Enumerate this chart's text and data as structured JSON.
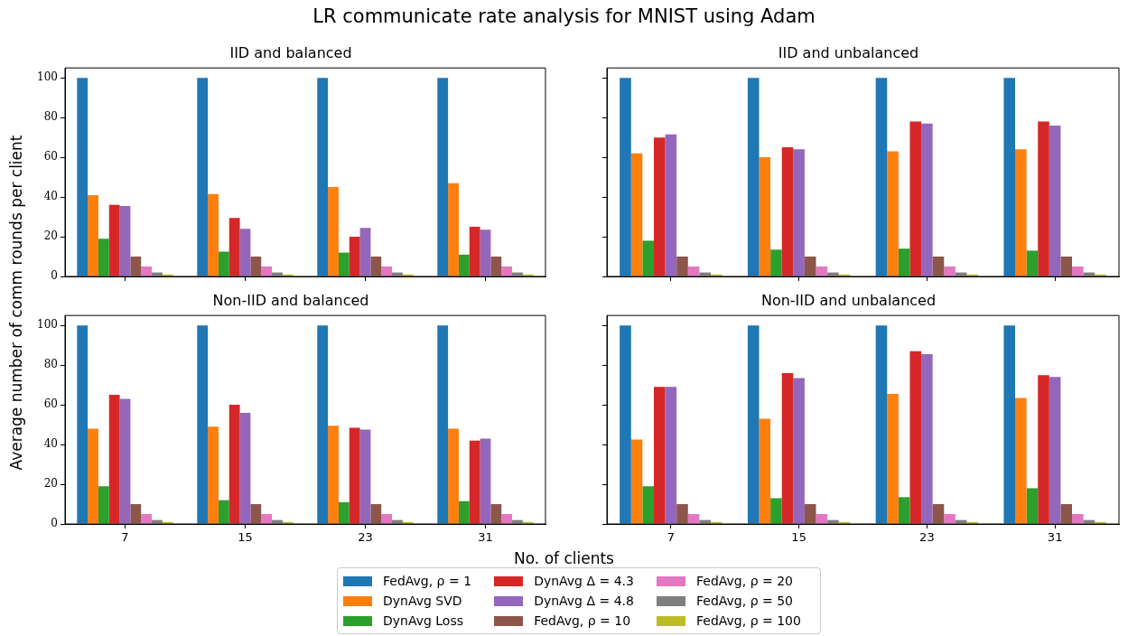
{
  "chart_data": [
    {
      "type": "bar",
      "title": "IID and balanced",
      "annotations": [
        "LR communicate rate analysis for MNIST using Adam"
      ],
      "ylabel": "Average number of comm rounds per client",
      "legend": "bottom",
      "categories": [
        "7",
        "15",
        "23",
        "31"
      ],
      "ylim": [
        0,
        105
      ],
      "yticks": [
        0,
        20,
        40,
        60,
        80,
        100
      ],
      "grid": false,
      "tick_labels": "y",
      "series": [
        {
          "name": "FedAvg, ρ = 1",
          "color": "#1f77b4",
          "values": [
            100,
            100,
            100,
            100
          ]
        },
        {
          "name": "DynAvg SVD",
          "color": "#ff7f0e",
          "values": [
            41,
            41.5,
            45,
            47
          ]
        },
        {
          "name": "DynAvg Loss",
          "color": "#2ca02c",
          "values": [
            19,
            12.5,
            12,
            11
          ]
        },
        {
          "name": "DynAvg Δ = 4.3",
          "color": "#d62728",
          "values": [
            36,
            29.5,
            20,
            25
          ]
        },
        {
          "name": "DynAvg Δ = 4.8",
          "color": "#9467bd",
          "values": [
            35.5,
            24,
            24.5,
            23.5
          ]
        },
        {
          "name": "FedAvg, ρ = 10",
          "color": "#8c564b",
          "values": [
            10,
            10,
            10,
            10
          ]
        },
        {
          "name": "FedAvg, ρ = 20",
          "color": "#e377c2",
          "values": [
            5,
            5,
            5,
            5
          ]
        },
        {
          "name": "FedAvg, ρ = 50",
          "color": "#7f7f7f",
          "values": [
            2,
            2,
            2,
            2
          ]
        },
        {
          "name": "FedAvg, ρ = 100",
          "color": "#bcbd22",
          "values": [
            1,
            1,
            1,
            1
          ]
        }
      ]
    },
    {
      "type": "bar",
      "title": "IID and unbalanced",
      "categories": [
        "7",
        "15",
        "23",
        "31"
      ],
      "ylim": [
        0,
        105
      ],
      "yticks": [
        0,
        20,
        40,
        60,
        80,
        100
      ],
      "grid": false,
      "tick_labels": false,
      "series": [
        {
          "color": "#1f77b4",
          "values": [
            100,
            100,
            100,
            100
          ]
        },
        {
          "color": "#ff7f0e",
          "values": [
            62,
            60,
            63,
            64
          ]
        },
        {
          "color": "#2ca02c",
          "values": [
            18,
            13.5,
            14,
            13
          ]
        },
        {
          "color": "#d62728",
          "values": [
            70,
            65,
            78,
            78
          ]
        },
        {
          "color": "#9467bd",
          "values": [
            71.5,
            64,
            77,
            76
          ]
        },
        {
          "color": "#8c564b",
          "values": [
            10,
            10,
            10,
            10
          ]
        },
        {
          "color": "#e377c2",
          "values": [
            5,
            5,
            5,
            5
          ]
        },
        {
          "color": "#7f7f7f",
          "values": [
            2,
            2,
            2,
            2
          ]
        },
        {
          "color": "#bcbd22",
          "values": [
            1,
            1,
            1,
            1
          ]
        }
      ]
    },
    {
      "type": "bar",
      "title": "Non-IID and balanced",
      "xlabel": "No. of clients",
      "categories": [
        "7",
        "15",
        "23",
        "31"
      ],
      "ylim": [
        0,
        105
      ],
      "yticks": [
        0,
        20,
        40,
        60,
        80,
        100
      ],
      "grid": false,
      "series": [
        {
          "color": "#1f77b4",
          "values": [
            100,
            100,
            100,
            100
          ]
        },
        {
          "color": "#ff7f0e",
          "values": [
            48,
            49,
            49.5,
            48
          ]
        },
        {
          "color": "#2ca02c",
          "values": [
            19,
            12,
            11,
            11.5
          ]
        },
        {
          "color": "#d62728",
          "values": [
            65,
            60,
            48.5,
            42
          ]
        },
        {
          "color": "#9467bd",
          "values": [
            63,
            56,
            47.5,
            43
          ]
        },
        {
          "color": "#8c564b",
          "values": [
            10,
            10,
            10,
            10
          ]
        },
        {
          "color": "#e377c2",
          "values": [
            5,
            5,
            5,
            5
          ]
        },
        {
          "color": "#7f7f7f",
          "values": [
            2,
            2,
            2,
            2
          ]
        },
        {
          "color": "#bcbd22",
          "values": [
            1,
            1,
            1,
            1
          ]
        }
      ]
    },
    {
      "type": "bar",
      "title": "Non-IID and unbalanced",
      "categories": [
        "7",
        "15",
        "23",
        "31"
      ],
      "ylim": [
        0,
        105
      ],
      "yticks": [
        0,
        20,
        40,
        60,
        80,
        100
      ],
      "grid": false,
      "tick_labels": "x",
      "series": [
        {
          "color": "#1f77b4",
          "values": [
            100,
            100,
            100,
            100
          ]
        },
        {
          "color": "#ff7f0e",
          "values": [
            42.5,
            53,
            65.5,
            63.5
          ]
        },
        {
          "color": "#2ca02c",
          "values": [
            19,
            13,
            13.5,
            18
          ]
        },
        {
          "color": "#d62728",
          "values": [
            69,
            76,
            87,
            75
          ]
        },
        {
          "color": "#9467bd",
          "values": [
            69,
            73.5,
            85.5,
            74
          ]
        },
        {
          "color": "#8c564b",
          "values": [
            10,
            10,
            10,
            10
          ]
        },
        {
          "color": "#e377c2",
          "values": [
            5,
            5,
            5,
            5
          ]
        },
        {
          "color": "#7f7f7f",
          "values": [
            2,
            2,
            2,
            2
          ]
        },
        {
          "color": "#bcbd22",
          "values": [
            1,
            1,
            1,
            1
          ]
        }
      ]
    }
  ]
}
